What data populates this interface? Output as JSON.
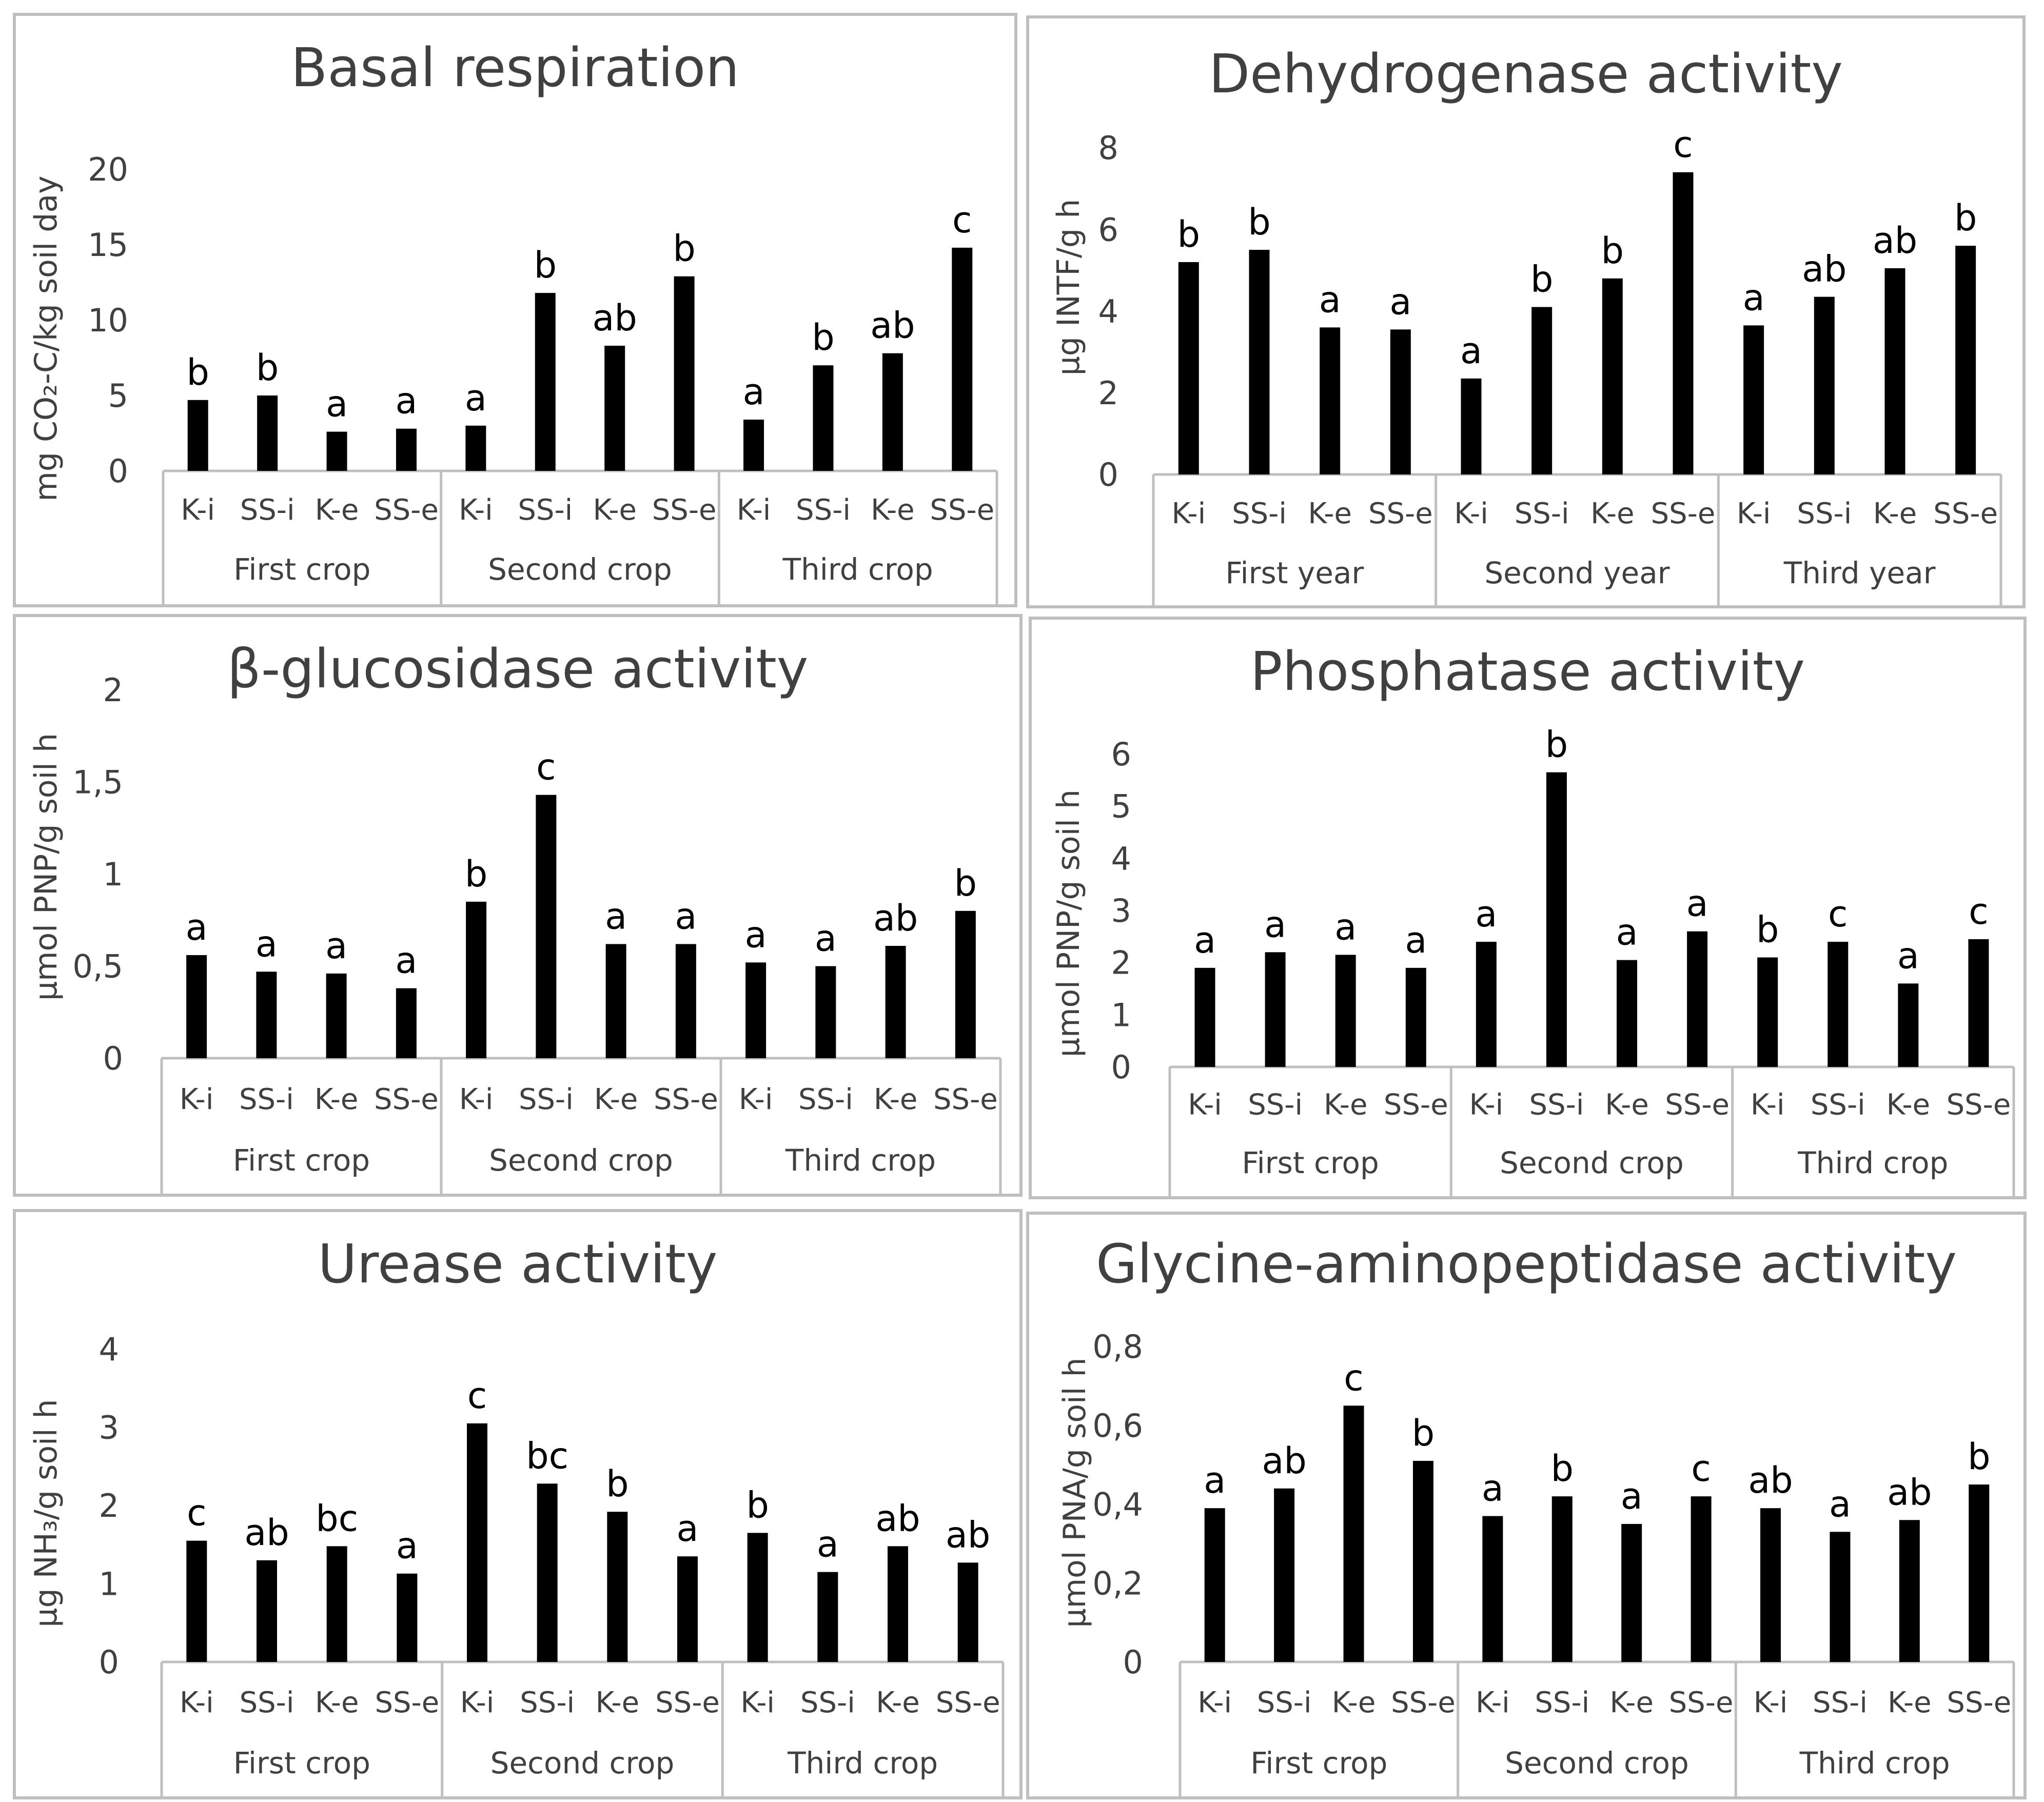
{
  "figure": {
    "categories": [
      "K-i",
      "SS-i",
      "K-e",
      "SS-e"
    ]
  },
  "chart_data": [
    {
      "type": "bar",
      "title": "Basal respiration",
      "ylabel": "mg CO₂-C/kg soil day",
      "ylim": [
        0,
        20
      ],
      "yticks": [
        "0",
        "5",
        "10",
        "15",
        "20"
      ],
      "groups": [
        "First crop",
        "Second crop",
        "Third crop"
      ],
      "categories": [
        "K-i",
        "SS-i",
        "K-e",
        "SS-e"
      ],
      "values": [
        [
          4.7,
          5.0,
          2.6,
          2.8
        ],
        [
          3.0,
          11.8,
          8.3,
          12.9
        ],
        [
          3.4,
          7.0,
          7.8,
          14.8
        ]
      ],
      "letters": [
        [
          "b",
          "b",
          "a",
          "a"
        ],
        [
          "a",
          "b",
          "ab",
          "b"
        ],
        [
          "a",
          "b",
          "ab",
          "c"
        ]
      ]
    },
    {
      "type": "bar",
      "title": "Dehydrogenase activity",
      "ylabel": "μg INTF/g h",
      "ylim": [
        0,
        8
      ],
      "yticks": [
        "0",
        "2",
        "4",
        "6",
        "8"
      ],
      "groups": [
        "First year",
        "Second year",
        "Third year"
      ],
      "categories": [
        "K-i",
        "SS-i",
        "K-e",
        "SS-e"
      ],
      "values": [
        [
          5.2,
          5.5,
          3.6,
          3.55
        ],
        [
          2.35,
          4.1,
          4.8,
          7.4
        ],
        [
          3.65,
          4.35,
          5.05,
          5.6
        ]
      ],
      "letters": [
        [
          "b",
          "b",
          "a",
          "a"
        ],
        [
          "a",
          "b",
          "b",
          "c"
        ],
        [
          "a",
          "ab",
          "ab",
          "b"
        ]
      ]
    },
    {
      "type": "bar",
      "title": "β-glucosidase activity",
      "ylabel": "μmol PNP/g soil h",
      "ylim": [
        0,
        2
      ],
      "yticks": [
        "0",
        "0,5",
        "1",
        "1,5",
        "2"
      ],
      "groups": [
        "First crop",
        "Second crop",
        "Third crop"
      ],
      "categories": [
        "K-i",
        "SS-i",
        "K-e",
        "SS-e"
      ],
      "values": [
        [
          0.56,
          0.47,
          0.46,
          0.38
        ],
        [
          0.85,
          1.43,
          0.62,
          0.62
        ],
        [
          0.52,
          0.5,
          0.61,
          0.8
        ]
      ],
      "letters": [
        [
          "a",
          "a",
          "a",
          "a"
        ],
        [
          "b",
          "c",
          "a",
          "a"
        ],
        [
          "a",
          "a",
          "ab",
          "b"
        ]
      ]
    },
    {
      "type": "bar",
      "title": "Phosphatase activity",
      "ylabel": "μmol PNP/g soil h",
      "ylim": [
        0,
        6
      ],
      "yticks": [
        "0",
        "1",
        "2",
        "3",
        "4",
        "5",
        "6"
      ],
      "groups": [
        "First crop",
        "Second crop",
        "Third crop"
      ],
      "categories": [
        "K-i",
        "SS-i",
        "K-e",
        "SS-e"
      ],
      "values": [
        [
          1.9,
          2.2,
          2.15,
          1.9
        ],
        [
          2.4,
          5.65,
          2.05,
          2.6
        ],
        [
          2.1,
          2.4,
          1.6,
          2.45
        ]
      ],
      "letters": [
        [
          "a",
          "a",
          "a",
          "a"
        ],
        [
          "a",
          "b",
          "a",
          "a"
        ],
        [
          "b",
          "c",
          "a",
          "c"
        ]
      ]
    },
    {
      "type": "bar",
      "title": "Urease activity",
      "ylabel": "μg NH₃/g soil h",
      "ylim": [
        0,
        4
      ],
      "yticks": [
        "0",
        "1",
        "2",
        "3",
        "4"
      ],
      "groups": [
        "First crop",
        "Second crop",
        "Third crop"
      ],
      "categories": [
        "K-i",
        "SS-i",
        "K-e",
        "SS-e"
      ],
      "values": [
        [
          1.55,
          1.3,
          1.48,
          1.13
        ],
        [
          3.05,
          2.28,
          1.92,
          1.35
        ],
        [
          1.65,
          1.15,
          1.48,
          1.27
        ]
      ],
      "letters": [
        [
          "c",
          "ab",
          "bc",
          "a"
        ],
        [
          "c",
          "bc",
          "b",
          "a"
        ],
        [
          "b",
          "a",
          "ab",
          "ab"
        ]
      ]
    },
    {
      "type": "bar",
      "title": "Glycine-aminopeptidase activity",
      "ylabel": "μmol PNA/g soil h",
      "ylim": [
        0,
        0.8
      ],
      "yticks": [
        "0",
        "0,2",
        "0,4",
        "0,6",
        "0,8"
      ],
      "groups": [
        "First crop",
        "Second crop",
        "Third crop"
      ],
      "categories": [
        "K-i",
        "SS-i",
        "K-e",
        "SS-e"
      ],
      "values": [
        [
          0.39,
          0.44,
          0.65,
          0.51
        ],
        [
          0.37,
          0.42,
          0.35,
          0.42
        ],
        [
          0.39,
          0.33,
          0.36,
          0.45
        ]
      ],
      "letters": [
        [
          "a",
          "ab",
          "c",
          "b"
        ],
        [
          "a",
          "b",
          "a",
          "c"
        ],
        [
          "ab",
          "a",
          "ab",
          "b"
        ]
      ]
    }
  ]
}
